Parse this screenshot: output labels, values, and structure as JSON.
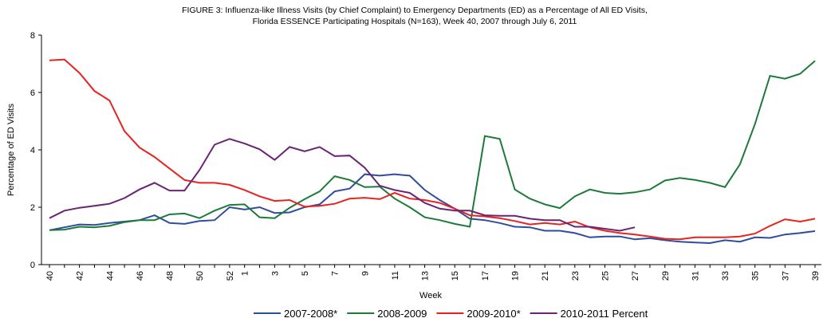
{
  "chart_data": {
    "type": "line",
    "title": [
      "FIGURE 3: Influenza-like Illness Visits (by Chief Complaint) to Emergency Departments (ED) as a Percentage of All ED Visits,",
      "Florida ESSENCE Participating Hospitals (N=163), Week 40, 2007 through July 6, 2011"
    ],
    "x_label": "Week",
    "y_label": "Percentage of ED Visits",
    "ylim": [
      0,
      8
    ],
    "yticks": [
      0,
      2,
      4,
      6,
      8
    ],
    "grid": false,
    "legend": "bottom",
    "categories": [
      "40",
      null,
      "42",
      null,
      "44",
      null,
      "46",
      null,
      "48",
      null,
      "50",
      null,
      "52",
      "1",
      null,
      "3",
      null,
      "5",
      null,
      "7",
      null,
      "9",
      null,
      "11",
      null,
      "13",
      null,
      "15",
      null,
      "17",
      null,
      "19",
      null,
      "21",
      null,
      "23",
      null,
      "25",
      null,
      "27",
      null,
      "29",
      null,
      "31",
      null,
      "33",
      null,
      "35",
      null,
      "37",
      null,
      "39"
    ],
    "series": [
      {
        "name": "2007-2008*",
        "color": "#2e4d9c",
        "values": [
          1.2,
          1.3,
          1.4,
          1.38,
          1.45,
          1.5,
          1.55,
          1.72,
          1.45,
          1.42,
          1.52,
          1.55,
          2.0,
          1.92,
          2.0,
          1.8,
          1.82,
          2.0,
          2.1,
          2.55,
          2.65,
          3.15,
          3.1,
          3.15,
          3.1,
          2.6,
          2.25,
          1.95,
          1.6,
          1.55,
          1.45,
          1.32,
          1.3,
          1.18,
          1.18,
          1.1,
          0.95,
          0.98,
          0.98,
          0.88,
          0.92,
          0.85,
          0.8,
          0.77,
          0.75,
          0.85,
          0.8,
          0.95,
          0.93,
          1.05,
          1.1,
          1.17
        ]
      },
      {
        "name": "2008-2009",
        "color": "#1e7a3a",
        "values": [
          1.2,
          1.22,
          1.32,
          1.3,
          1.35,
          1.48,
          1.55,
          1.55,
          1.75,
          1.78,
          1.62,
          1.88,
          2.08,
          2.1,
          1.65,
          1.62,
          1.98,
          2.28,
          2.55,
          3.08,
          2.95,
          2.7,
          2.72,
          2.3,
          2.0,
          1.65,
          1.55,
          1.42,
          1.32,
          4.48,
          4.38,
          2.62,
          2.3,
          2.1,
          1.97,
          2.38,
          2.62,
          2.5,
          2.47,
          2.52,
          2.62,
          2.93,
          3.02,
          2.95,
          2.85,
          2.7,
          3.5,
          4.9,
          6.58,
          6.48,
          6.65,
          7.1
        ]
      },
      {
        "name": "2009-2010*",
        "color": "#e8231f",
        "values": [
          7.12,
          7.15,
          6.68,
          6.05,
          5.72,
          4.65,
          4.08,
          3.75,
          3.35,
          2.95,
          2.85,
          2.85,
          2.78,
          2.6,
          2.38,
          2.22,
          2.25,
          2.02,
          2.05,
          2.12,
          2.3,
          2.33,
          2.28,
          2.5,
          2.3,
          2.25,
          2.15,
          1.95,
          1.72,
          1.68,
          1.62,
          1.52,
          1.4,
          1.45,
          1.4,
          1.5,
          1.3,
          1.18,
          1.1,
          1.05,
          0.98,
          0.9,
          0.88,
          0.95,
          0.95,
          0.95,
          0.98,
          1.08,
          1.35,
          1.58,
          1.5,
          1.6
        ]
      },
      {
        "name": "2010-2011 Percent",
        "color": "#6a2474",
        "values": [
          1.62,
          1.88,
          1.98,
          2.05,
          2.12,
          2.32,
          2.62,
          2.85,
          2.58,
          2.58,
          3.3,
          4.18,
          4.38,
          4.22,
          4.02,
          3.65,
          4.1,
          3.95,
          4.1,
          3.78,
          3.8,
          3.38,
          2.75,
          2.6,
          2.5,
          2.15,
          1.95,
          1.88,
          1.88,
          1.72,
          1.7,
          1.7,
          1.6,
          1.55,
          1.55,
          1.32,
          1.32,
          1.25,
          1.18,
          1.3,
          null,
          null,
          null,
          null,
          null,
          null,
          null,
          null,
          null,
          null,
          null,
          null
        ]
      }
    ]
  }
}
